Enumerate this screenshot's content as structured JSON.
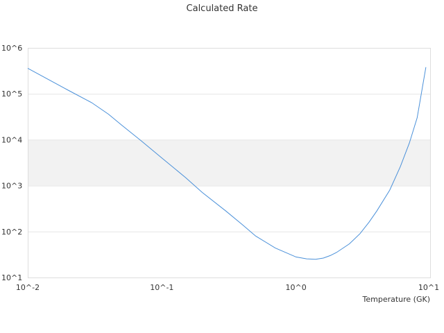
{
  "chart_data": {
    "type": "line",
    "title": "Calculated Rate",
    "xlabel": "Temperature (GK)",
    "ylabel": "",
    "x_scale": "log",
    "y_scale": "log",
    "xlim": [
      0.01,
      10
    ],
    "ylim": [
      10,
      1000000
    ],
    "x_ticks": [
      {
        "value": 0.01,
        "label": "10^-2"
      },
      {
        "value": 0.1,
        "label": "10^-1"
      },
      {
        "value": 1,
        "label": "10^0"
      },
      {
        "value": 10,
        "label": "10^1"
      }
    ],
    "y_ticks": [
      {
        "value": 10,
        "label": "10^1"
      },
      {
        "value": 100,
        "label": "10^2"
      },
      {
        "value": 1000,
        "label": "10^3"
      },
      {
        "value": 10000,
        "label": "10^4"
      },
      {
        "value": 100000,
        "label": "10^5"
      },
      {
        "value": 1000000,
        "label": "10^6"
      }
    ],
    "grid": "alternating horizontal bands",
    "band_color": "#f2f2f2",
    "line_color": "#4a90d9",
    "series": [
      {
        "x": [
          0.01,
          0.02,
          0.03,
          0.04,
          0.05,
          0.07,
          0.1,
          0.15,
          0.2,
          0.3,
          0.4,
          0.5,
          0.7,
          1.0,
          1.2,
          1.4,
          1.6,
          1.8,
          2.0,
          2.5,
          3.0,
          3.5,
          4.0,
          5.0,
          6.0,
          7.0,
          8.0,
          9.3
        ],
        "y": [
          360000,
          120000,
          64000,
          36000,
          21000,
          9500,
          4000,
          1500,
          710,
          280,
          140,
          80,
          44,
          28,
          25.5,
          25,
          26.5,
          30,
          35,
          54,
          90,
          160,
          280,
          800,
          2600,
          8500,
          30000,
          380000
        ]
      }
    ]
  }
}
